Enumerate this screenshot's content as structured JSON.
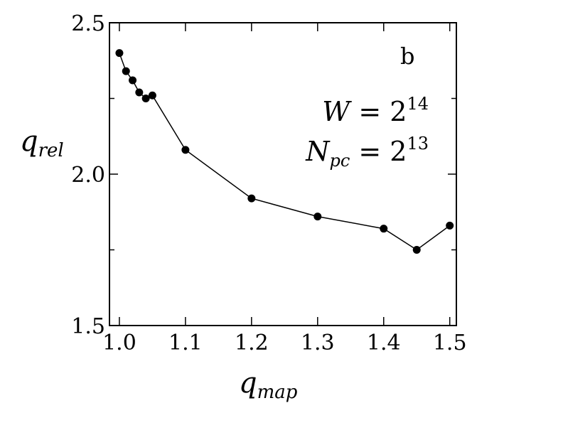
{
  "chart_data": {
    "type": "line",
    "panel_label": "b",
    "xlabel": {
      "main": "q",
      "sub": "map"
    },
    "ylabel": {
      "main": "q",
      "sub": "rel"
    },
    "xlim": [
      0.985,
      1.51
    ],
    "ylim": [
      1.5,
      2.5
    ],
    "xticks": [
      1.0,
      1.1,
      1.2,
      1.3,
      1.4,
      1.5
    ],
    "xtick_labels": [
      "1.0",
      "1.1",
      "1.2",
      "1.3",
      "1.4",
      "1.5"
    ],
    "yticks": [
      1.5,
      2.0,
      2.5
    ],
    "ytick_labels": [
      "1.5",
      "2.0",
      "2.5"
    ],
    "y_minor_ticks": [
      1.75,
      2.25
    ],
    "grid": false,
    "annotations": [
      {
        "lhs": "W",
        "lhs_sub": "",
        "rel": " = ",
        "base": "2",
        "exp": "14"
      },
      {
        "lhs": "N",
        "lhs_sub": "pc",
        "rel": " = ",
        "base": "2",
        "exp": "13"
      }
    ],
    "series": [
      {
        "marker": "circle",
        "color": "#000000",
        "x": [
          1.0,
          1.01,
          1.02,
          1.03,
          1.04,
          1.05,
          1.1,
          1.2,
          1.3,
          1.4,
          1.45,
          1.5
        ],
        "y": [
          2.4,
          2.34,
          2.31,
          2.27,
          2.25,
          2.26,
          2.08,
          1.92,
          1.86,
          1.82,
          1.75,
          1.83
        ]
      }
    ]
  }
}
